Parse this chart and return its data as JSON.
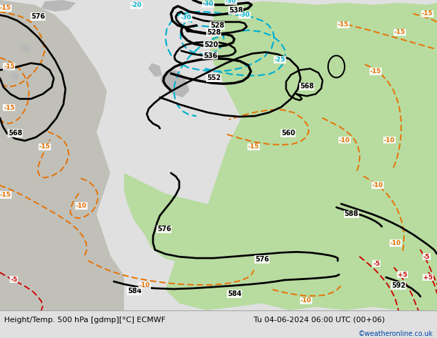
{
  "title_left": "Height/Temp. 500 hPa [gdmp][°C] ECMWF",
  "title_right": "Tu 04-06-2024 06:00 UTC (00+06)",
  "credit": "©weatheronline.co.uk",
  "bg_land_green": "#b8dba0",
  "bg_land_gray": "#b8b8b8",
  "bg_sea": "#c8d8c8",
  "white": "#ffffff",
  "height_color": "#000000",
  "temp_orange": "#e87000",
  "temp_cyan": "#00b0d0",
  "temp_red": "#cc0000",
  "temp_green_label": "#006600",
  "bottom_bar": "#e0e0e0",
  "title_font": 8.0,
  "credit_color": "#0044aa"
}
